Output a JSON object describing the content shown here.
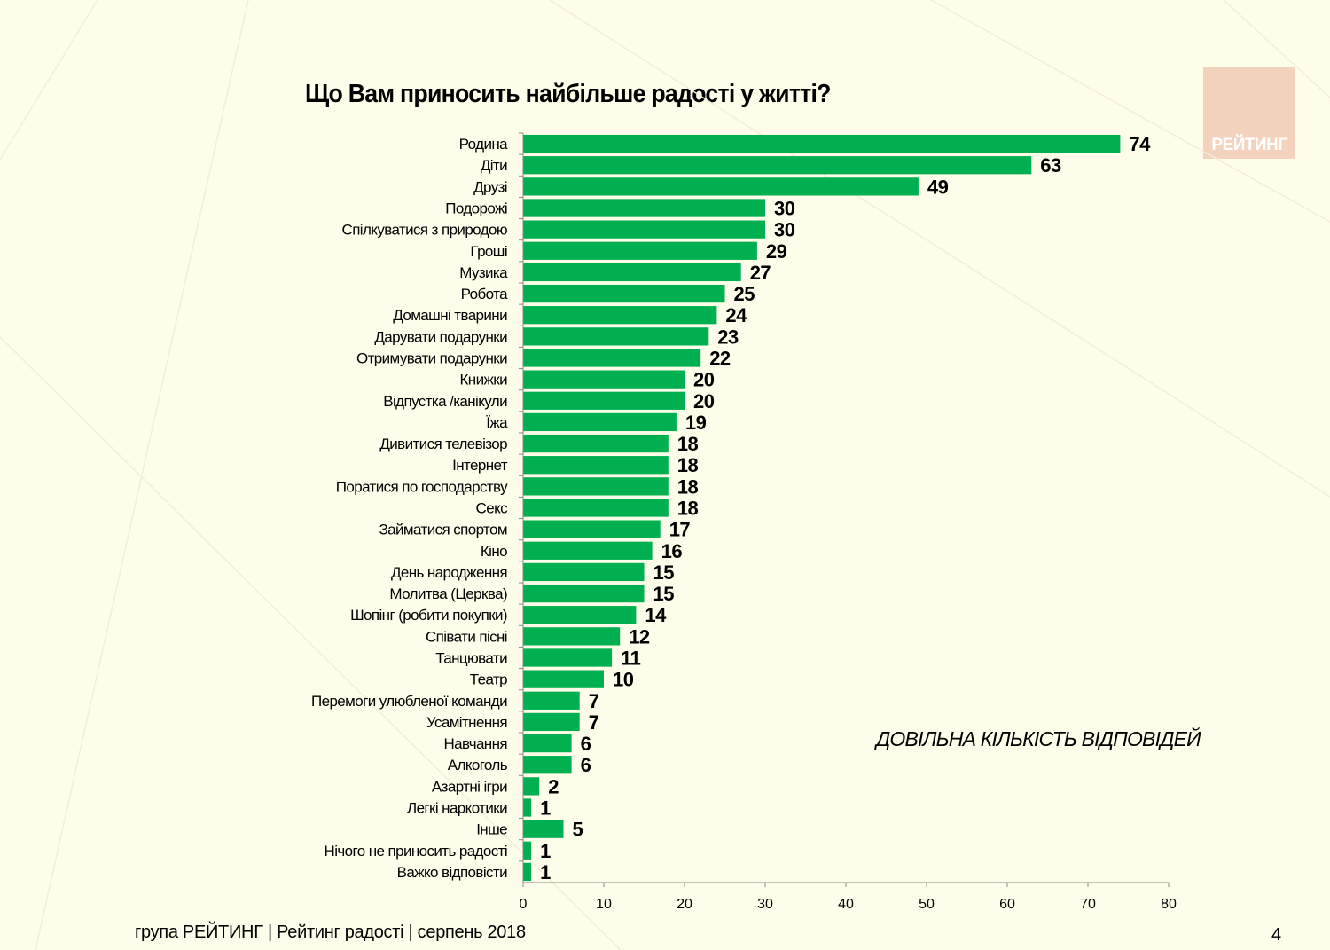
{
  "chart_data": {
    "type": "bar",
    "orientation": "horizontal",
    "title": "Що Вам приносить найбільше радості у  житті?",
    "categories": [
      "Родина",
      "Діти",
      "Друзі",
      "Подорожі",
      "Спілкуватися з природою",
      "Гроші",
      "Музика",
      "Робота",
      "Домашні тварини",
      "Дарувати подарунки",
      "Отримувати подарунки",
      "Книжки",
      "Відпустка /канікули",
      "Їжа",
      "Дивитися телевізор",
      "Інтернет",
      "Поратися по господарству",
      "Секс",
      "Займатися спортом",
      "Кіно",
      "День народження",
      "Молитва (Церква)",
      "Шопінг (робити покупки)",
      "Співати пісні",
      "Танцювати",
      "Театр",
      "Перемоги улюбленої команди",
      "Усамітнення",
      "Навчання",
      "Алкоголь",
      "Азартні ігри",
      "Легкі наркотики",
      "Інше",
      "Нічого не приносить радості",
      "Важко відповісти"
    ],
    "values": [
      74,
      63,
      49,
      30,
      30,
      29,
      27,
      25,
      24,
      23,
      22,
      20,
      20,
      19,
      18,
      18,
      18,
      18,
      17,
      16,
      15,
      15,
      14,
      12,
      11,
      10,
      7,
      7,
      6,
      6,
      2,
      1,
      5,
      1,
      1
    ],
    "xlim": [
      0,
      80
    ],
    "xticks": [
      "0",
      "10",
      "20",
      "30",
      "40",
      "50",
      "60",
      "70",
      "80"
    ],
    "grid": false,
    "bar_color": "#00b050",
    "annotation": "ДОВІЛЬНА КІЛЬКІСТЬ ВІДПОВІДЕЙ"
  },
  "logo_text": "РЕЙТИНГ",
  "footer": "група РЕЙТИНГ  |  Рейтинг радості  |  серпень  2018",
  "page_number": "4"
}
